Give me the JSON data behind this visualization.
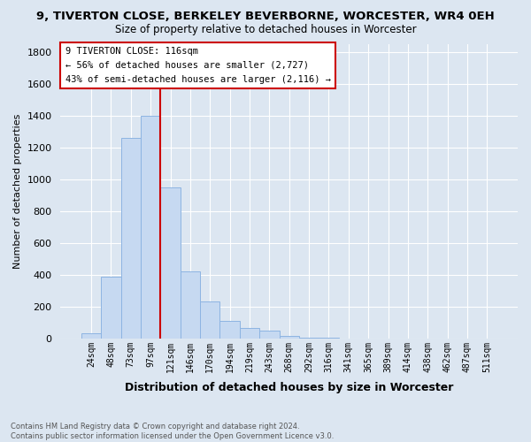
{
  "title_line1": "9, TIVERTON CLOSE, BERKELEY BEVERBORNE, WORCESTER, WR4 0EH",
  "title_line2": "Size of property relative to detached houses in Worcester",
  "xlabel": "Distribution of detached houses by size in Worcester",
  "ylabel": "Number of detached properties",
  "bar_labels": [
    "24sqm",
    "48sqm",
    "73sqm",
    "97sqm",
    "121sqm",
    "146sqm",
    "170sqm",
    "194sqm",
    "219sqm",
    "243sqm",
    "268sqm",
    "292sqm",
    "316sqm",
    "341sqm",
    "365sqm",
    "389sqm",
    "414sqm",
    "438sqm",
    "462sqm",
    "487sqm",
    "511sqm"
  ],
  "bar_heights": [
    30,
    390,
    1260,
    1400,
    950,
    420,
    235,
    110,
    65,
    48,
    15,
    5,
    3,
    2,
    1,
    1,
    0,
    0,
    0,
    0,
    0
  ],
  "bar_color": "#c6d9f1",
  "bar_edge_color": "#8db4e2",
  "vline_color": "#cc0000",
  "annotation_title": "9 TIVERTON CLOSE: 116sqm",
  "annotation_line1": "← 56% of detached houses are smaller (2,727)",
  "annotation_line2": "43% of semi-detached houses are larger (2,116) →",
  "annotation_box_color": "#ffffff",
  "annotation_border_color": "#cc0000",
  "ylim": [
    0,
    1850
  ],
  "yticks": [
    0,
    200,
    400,
    600,
    800,
    1000,
    1200,
    1400,
    1600,
    1800
  ],
  "footnote_line1": "Contains HM Land Registry data © Crown copyright and database right 2024.",
  "footnote_line2": "Contains public sector information licensed under the Open Government Licence v3.0.",
  "grid_color": "#ffffff",
  "bg_color": "#dce6f1"
}
